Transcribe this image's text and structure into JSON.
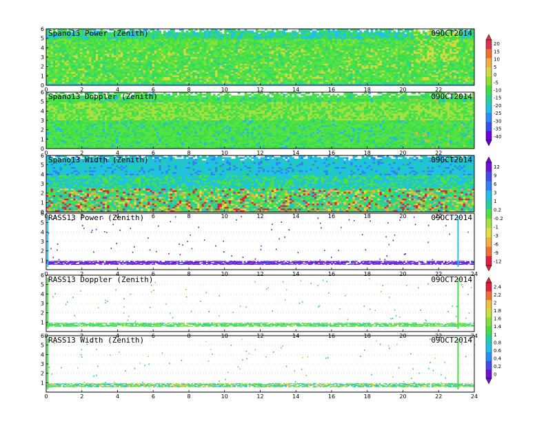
{
  "date_label": "09OCT2014",
  "palette": {
    "spano_power": [
      "#6a00d8",
      "#3a4cf0",
      "#2a8cf8",
      "#20c0e8",
      "#2ad090",
      "#40e040",
      "#8ee030",
      "#d8d840",
      "#f0b040",
      "#f07030",
      "#e03050"
    ],
    "spano_doppler": [
      "#7010d0",
      "#4848f0",
      "#3080f8",
      "#20b8f0",
      "#20d0c0",
      "#38e068",
      "#60e040",
      "#a8e040",
      "#e0e040",
      "#f0b040"
    ],
    "spano_width": [
      "#e02040",
      "#f07030",
      "#f0b040",
      "#e0e040",
      "#a8e040",
      "#50e040",
      "#20d0a0",
      "#20c0e8",
      "#3080f8",
      "#4848f0",
      "#7010d0"
    ],
    "rass_power": [
      "#30d0f0",
      "#3080f8",
      "#4040f0",
      "#6020e0",
      "#7010d0",
      "#8010c0"
    ],
    "rass_doppler": [
      "#7010d0",
      "#4848f0",
      "#2090f8",
      "#20c0e8",
      "#20d0a0",
      "#40e040",
      "#80e040",
      "#c8e040",
      "#f0c040",
      "#f07030",
      "#e02040"
    ]
  },
  "chart_data": [
    {
      "type": "heatmap",
      "title": "Spano13 Power (Zenith)",
      "date": "09OCT2014",
      "xlim": [
        0,
        24
      ],
      "ylim": [
        0,
        6
      ],
      "x_ticks": [
        "0",
        "2",
        "4",
        "6",
        "8",
        "10",
        "12",
        "14",
        "16",
        "18",
        "20",
        "22"
      ],
      "y_ticks": [
        "0",
        "1",
        "2",
        "3",
        "4",
        "5",
        "6"
      ],
      "colorbar": "spano_power",
      "colorbar_labels": [
        "20",
        "15",
        "10",
        "5",
        "0",
        "-5",
        "-10",
        "-15",
        "-20",
        "-25",
        "-30",
        "-35",
        "-40"
      ],
      "coverage_top_km": 5.7,
      "dominant_color": "green"
    },
    {
      "type": "heatmap",
      "title": "Spano13 Doppler (Zenith)",
      "date": "09OCT2014",
      "xlim": [
        0,
        24
      ],
      "ylim": [
        0,
        6
      ],
      "x_ticks": [
        "0",
        "2",
        "4",
        "6",
        "8",
        "10",
        "12",
        "14",
        "16",
        "18",
        "20",
        "22"
      ],
      "y_ticks": [
        "0",
        "1",
        "2",
        "3",
        "4",
        "5",
        "6"
      ],
      "colorbar": "spano_doppler",
      "coverage_top_km": 5.6,
      "dominant_color": "green"
    },
    {
      "type": "heatmap",
      "title": "Spano13 Width (Zenith)",
      "date": "09OCT2014",
      "xlim": [
        0,
        24
      ],
      "ylim": [
        0,
        6
      ],
      "x_ticks": [
        "0",
        "2",
        "4",
        "6",
        "8",
        "10",
        "12",
        "14",
        "16",
        "18",
        "20",
        "22"
      ],
      "y_ticks": [
        "0",
        "1",
        "2",
        "3",
        "4",
        "5",
        "6"
      ],
      "colorbar": "spano_width",
      "colorbar_labels": [
        "12",
        "9",
        "6",
        "3",
        "1",
        "0.2",
        "-0.2",
        "-1",
        "-3",
        "-6",
        "-9",
        "-12"
      ],
      "coverage_top_km": 5.7,
      "dominant_color": "cyan-green"
    },
    {
      "type": "heatmap",
      "title": "RASS13 Power (Zenith)",
      "date": "09OCT2014",
      "xlim": [
        0,
        24
      ],
      "ylim": [
        0,
        6
      ],
      "x_ticks": [
        "0",
        "2",
        "4",
        "6",
        "8",
        "10",
        "12",
        "14",
        "16",
        "18",
        "20",
        "22",
        "24"
      ],
      "y_ticks": [
        "1",
        "2",
        "3",
        "4",
        "5",
        "6"
      ],
      "colorbar": "rass_power",
      "band_km": [
        0.5,
        0.9
      ],
      "dominant_color": "purple"
    },
    {
      "type": "heatmap",
      "title": "RASS13 Doppler (Zenith)",
      "date": "09OCT2014",
      "xlim": [
        0,
        24
      ],
      "ylim": [
        0,
        6
      ],
      "x_ticks": [
        "0",
        "2",
        "4",
        "6",
        "8",
        "10",
        "12",
        "14",
        "16",
        "18",
        "20",
        "22",
        "24"
      ],
      "y_ticks": [
        "1",
        "2",
        "3",
        "4",
        "5",
        "6"
      ],
      "colorbar": "rass_doppler",
      "colorbar_labels": [
        "2.4",
        "2.2",
        "2",
        "1.8",
        "1.6",
        "1.4",
        "1",
        "0.8",
        "0.6",
        "0.4",
        "0.2",
        "0"
      ],
      "band_km": [
        0.5,
        0.9
      ],
      "dominant_color": "green"
    },
    {
      "type": "heatmap",
      "title": "RASS13 Width (Zenith)",
      "date": "09OCT2014",
      "xlim": [
        0,
        24
      ],
      "ylim": [
        0,
        6
      ],
      "x_ticks": [
        "0",
        "2",
        "4",
        "6",
        "8",
        "10",
        "12",
        "14",
        "16",
        "18",
        "20",
        "22",
        "24"
      ],
      "y_ticks": [
        "1",
        "2",
        "3",
        "4",
        "5",
        "6"
      ],
      "colorbar": "rass_doppler",
      "band_km": [
        0.5,
        0.9
      ],
      "dominant_color": "green"
    }
  ]
}
